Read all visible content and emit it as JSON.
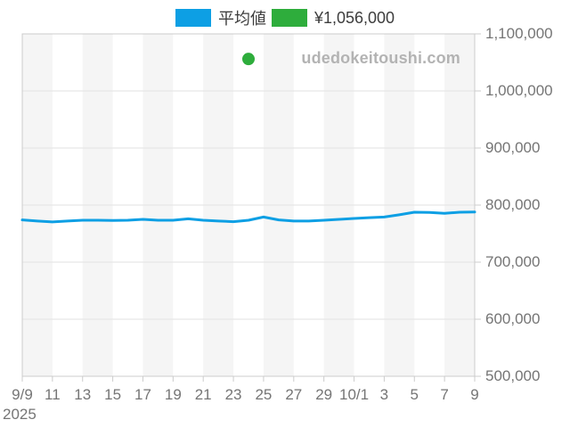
{
  "legend": {
    "items": [
      {
        "label": "平均値",
        "color": "#0d9fe4"
      },
      {
        "label": "¥1,056,000",
        "color": "#2ead3c"
      }
    ]
  },
  "watermark": "udedokeitoushi.com",
  "chart_data": {
    "type": "line",
    "title": "",
    "xlabel": "",
    "ylabel": "",
    "grid": true,
    "legend_position": "top",
    "ylim": [
      500000,
      1100000
    ],
    "y_ticks": [
      1100000,
      1000000,
      900000,
      800000,
      700000,
      600000,
      500000
    ],
    "y_tick_labels": [
      "1,100,000",
      "1,000,000",
      "900,000",
      "800,000",
      "700,000",
      "600,000",
      "500,000"
    ],
    "x_tick_labels": [
      "9/9",
      "11",
      "13",
      "15",
      "17",
      "19",
      "21",
      "23",
      "25",
      "27",
      "29",
      "10/1",
      "3",
      "5",
      "7",
      "9"
    ],
    "year_label": "2025",
    "x_dates": [
      "9/9",
      "9/10",
      "9/11",
      "9/12",
      "9/13",
      "9/14",
      "9/15",
      "9/16",
      "9/17",
      "9/18",
      "9/19",
      "9/20",
      "9/21",
      "9/22",
      "9/23",
      "9/24",
      "9/25",
      "9/26",
      "9/27",
      "9/28",
      "9/29",
      "9/30",
      "10/1",
      "10/2",
      "10/3",
      "10/4",
      "10/5",
      "10/6",
      "10/7",
      "10/8",
      "10/9"
    ],
    "series": [
      {
        "name": "平均値",
        "color": "#0d9fe4",
        "values": [
          774000,
          772000,
          770500,
          772000,
          773500,
          773500,
          773000,
          773500,
          775000,
          773500,
          773500,
          776000,
          773500,
          772000,
          771000,
          773500,
          779000,
          774000,
          772000,
          772000,
          773500,
          775000,
          776500,
          778000,
          779000,
          783000,
          787500,
          787000,
          785500,
          787500,
          788000
        ]
      }
    ],
    "marker": {
      "label": "¥1,056,000",
      "date": "9/24",
      "x_index": 15,
      "value": 1056000,
      "color": "#2ead3c",
      "radius": 7
    }
  }
}
